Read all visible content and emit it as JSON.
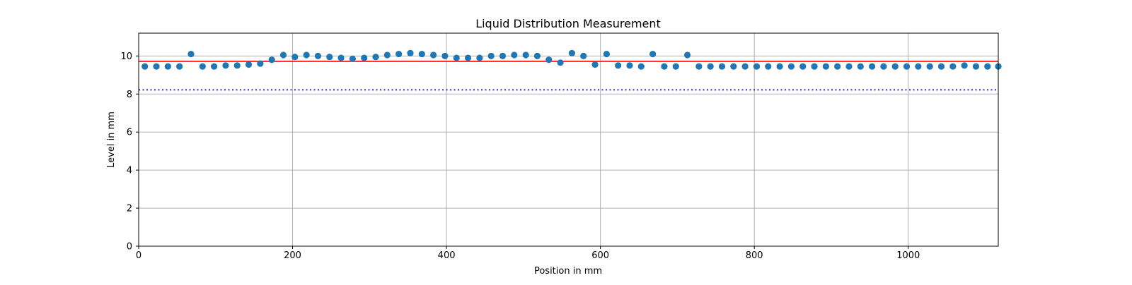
{
  "chart_data": {
    "type": "scatter",
    "title": "Liquid Distribution Measurement",
    "xlabel": "Position in mm",
    "ylabel": "Level in mm",
    "xlim": [
      0,
      1117
    ],
    "ylim": [
      0,
      11.2
    ],
    "xticks": [
      0,
      200,
      400,
      600,
      800,
      1000
    ],
    "yticks": [
      0,
      2,
      4,
      6,
      8,
      10
    ],
    "grid": true,
    "colors": {
      "points": "#1f77b4",
      "mean_line": "#ff0000",
      "threshold_line": "#0000ff",
      "grid": "#b0b0b0"
    },
    "series": [
      {
        "x": [
          8,
          23,
          38,
          53,
          68,
          83,
          98,
          113,
          128,
          143,
          158,
          173,
          188,
          203,
          218,
          233,
          248,
          263,
          278,
          293,
          308,
          323,
          338,
          353,
          368,
          383,
          398,
          413,
          428,
          443,
          458,
          473,
          488,
          503,
          518,
          533,
          548,
          563,
          578,
          593,
          608,
          623,
          638,
          653,
          668,
          683,
          698,
          713,
          728,
          743,
          758,
          773,
          788,
          803,
          818,
          833,
          848,
          863,
          878,
          893,
          908,
          923,
          938,
          953,
          968,
          983,
          998,
          1013,
          1028,
          1043,
          1058,
          1073,
          1088,
          1103,
          1117
        ],
        "y": [
          9.45,
          9.45,
          9.45,
          9.45,
          10.1,
          9.45,
          9.45,
          9.5,
          9.5,
          9.55,
          9.6,
          9.8,
          10.05,
          9.95,
          10.05,
          10.0,
          9.95,
          9.9,
          9.85,
          9.9,
          9.95,
          10.05,
          10.1,
          10.15,
          10.1,
          10.05,
          10.0,
          9.9,
          9.9,
          9.9,
          10.0,
          10.0,
          10.05,
          10.05,
          10.0,
          9.8,
          9.65,
          10.15,
          10.0,
          9.55,
          10.1,
          9.5,
          9.5,
          9.45,
          10.1,
          9.45,
          9.45,
          10.05,
          9.45,
          9.45,
          9.45,
          9.45,
          9.45,
          9.45,
          9.45,
          9.45,
          9.45,
          9.45,
          9.45,
          9.45,
          9.45,
          9.45,
          9.45,
          9.45,
          9.45,
          9.45,
          9.45,
          9.45,
          9.45,
          9.45,
          9.45,
          9.5,
          9.45,
          9.45,
          9.45
        ]
      }
    ],
    "reference_lines": [
      {
        "y": 9.72,
        "style": "solid",
        "color": "#ff0000"
      },
      {
        "y": 8.22,
        "style": "dotted",
        "color": "#0000ff"
      }
    ]
  }
}
